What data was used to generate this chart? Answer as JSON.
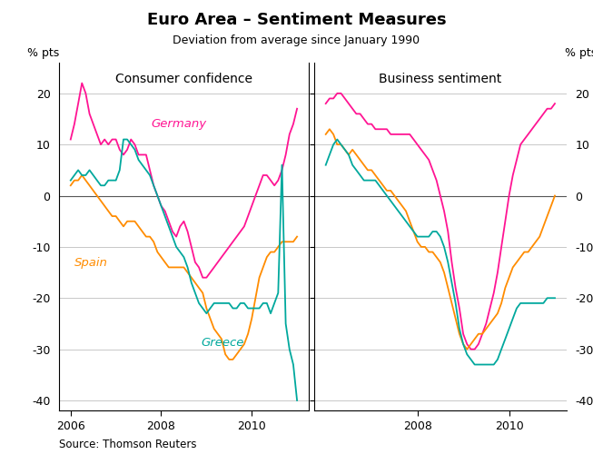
{
  "title": "Euro Area – Sentiment Measures",
  "subtitle": "Deviation from average since January 1990",
  "left_panel_title": "Consumer confidence",
  "right_panel_title": "Business sentiment",
  "ylabel": "% pts",
  "source": "Source: Thomson Reuters",
  "ylim": [
    -42,
    26
  ],
  "yticks": [
    -40,
    -30,
    -20,
    -10,
    0,
    10,
    20
  ],
  "germany_color": "#FF1493",
  "spain_color": "#FF8C00",
  "greece_color": "#00A89D",
  "consumer_dates": [
    2006.0,
    2006.083,
    2006.167,
    2006.25,
    2006.333,
    2006.417,
    2006.5,
    2006.583,
    2006.667,
    2006.75,
    2006.833,
    2006.917,
    2007.0,
    2007.083,
    2007.167,
    2007.25,
    2007.333,
    2007.417,
    2007.5,
    2007.583,
    2007.667,
    2007.75,
    2007.833,
    2007.917,
    2008.0,
    2008.083,
    2008.167,
    2008.25,
    2008.333,
    2008.417,
    2008.5,
    2008.583,
    2008.667,
    2008.75,
    2008.833,
    2008.917,
    2009.0,
    2009.083,
    2009.167,
    2009.25,
    2009.333,
    2009.417,
    2009.5,
    2009.583,
    2009.667,
    2009.75,
    2009.833,
    2009.917,
    2010.0,
    2010.083,
    2010.167,
    2010.25,
    2010.333,
    2010.417,
    2010.5,
    2010.583,
    2010.667,
    2010.75,
    2010.833,
    2010.917,
    2011.0
  ],
  "consumer_germany": [
    11,
    14,
    18,
    22,
    20,
    16,
    14,
    12,
    10,
    11,
    10,
    11,
    11,
    9,
    8,
    9,
    11,
    10,
    8,
    8,
    8,
    5,
    2,
    0,
    -2,
    -3,
    -5,
    -7,
    -8,
    -6,
    -5,
    -7,
    -10,
    -13,
    -14,
    -16,
    -16,
    -15,
    -14,
    -13,
    -12,
    -11,
    -10,
    -9,
    -8,
    -7,
    -6,
    -4,
    -2,
    0,
    2,
    4,
    4,
    3,
    2,
    3,
    5,
    8,
    12,
    14,
    17
  ],
  "consumer_spain": [
    2,
    3,
    3,
    4,
    3,
    2,
    1,
    0,
    -1,
    -2,
    -3,
    -4,
    -4,
    -5,
    -6,
    -5,
    -5,
    -5,
    -6,
    -7,
    -8,
    -8,
    -9,
    -11,
    -12,
    -13,
    -14,
    -14,
    -14,
    -14,
    -14,
    -15,
    -16,
    -17,
    -18,
    -19,
    -22,
    -24,
    -26,
    -27,
    -28,
    -31,
    -32,
    -32,
    -31,
    -30,
    -29,
    -27,
    -24,
    -20,
    -16,
    -14,
    -12,
    -11,
    -11,
    -10,
    -9,
    -9,
    -9,
    -9,
    -8
  ],
  "consumer_greece": [
    3,
    4,
    5,
    4,
    4,
    5,
    4,
    3,
    2,
    2,
    3,
    3,
    3,
    5,
    11,
    11,
    10,
    9,
    7,
    6,
    5,
    4,
    2,
    0,
    -2,
    -4,
    -6,
    -8,
    -10,
    -11,
    -12,
    -14,
    -17,
    -19,
    -21,
    -22,
    -23,
    -22,
    -21,
    -21,
    -21,
    -21,
    -21,
    -22,
    -22,
    -21,
    -21,
    -22,
    -22,
    -22,
    -22,
    -21,
    -21,
    -23,
    -21,
    -19,
    6,
    -25,
    -30,
    -33,
    -40
  ],
  "business_dates": [
    2006.0,
    2006.083,
    2006.167,
    2006.25,
    2006.333,
    2006.417,
    2006.5,
    2006.583,
    2006.667,
    2006.75,
    2006.833,
    2006.917,
    2007.0,
    2007.083,
    2007.167,
    2007.25,
    2007.333,
    2007.417,
    2007.5,
    2007.583,
    2007.667,
    2007.75,
    2007.833,
    2007.917,
    2008.0,
    2008.083,
    2008.167,
    2008.25,
    2008.333,
    2008.417,
    2008.5,
    2008.583,
    2008.667,
    2008.75,
    2008.833,
    2008.917,
    2009.0,
    2009.083,
    2009.167,
    2009.25,
    2009.333,
    2009.417,
    2009.5,
    2009.583,
    2009.667,
    2009.75,
    2009.833,
    2009.917,
    2010.0,
    2010.083,
    2010.167,
    2010.25,
    2010.333,
    2010.417,
    2010.5,
    2010.583,
    2010.667,
    2010.75,
    2010.833,
    2010.917,
    2011.0
  ],
  "business_germany": [
    18,
    19,
    19,
    20,
    20,
    19,
    18,
    17,
    16,
    16,
    15,
    14,
    14,
    13,
    13,
    13,
    13,
    12,
    12,
    12,
    12,
    12,
    12,
    11,
    10,
    9,
    8,
    7,
    5,
    3,
    0,
    -3,
    -7,
    -13,
    -18,
    -22,
    -27,
    -29,
    -30,
    -30,
    -29,
    -27,
    -25,
    -22,
    -19,
    -15,
    -10,
    -5,
    0,
    4,
    7,
    10,
    11,
    12,
    13,
    14,
    15,
    16,
    17,
    17,
    18
  ],
  "business_spain": [
    12,
    13,
    12,
    10,
    10,
    9,
    8,
    9,
    8,
    7,
    6,
    5,
    5,
    4,
    3,
    2,
    1,
    1,
    0,
    -1,
    -2,
    -3,
    -5,
    -7,
    -9,
    -10,
    -10,
    -11,
    -11,
    -12,
    -13,
    -15,
    -18,
    -21,
    -24,
    -27,
    -29,
    -30,
    -29,
    -28,
    -27,
    -27,
    -26,
    -25,
    -24,
    -23,
    -21,
    -18,
    -16,
    -14,
    -13,
    -12,
    -11,
    -11,
    -10,
    -9,
    -8,
    -6,
    -4,
    -2,
    0
  ],
  "business_greece": [
    6,
    8,
    10,
    11,
    10,
    9,
    8,
    6,
    5,
    4,
    3,
    3,
    3,
    3,
    2,
    1,
    0,
    -1,
    -2,
    -3,
    -4,
    -5,
    -6,
    -7,
    -8,
    -8,
    -8,
    -8,
    -7,
    -7,
    -8,
    -10,
    -13,
    -17,
    -21,
    -26,
    -29,
    -31,
    -32,
    -33,
    -33,
    -33,
    -33,
    -33,
    -33,
    -32,
    -30,
    -28,
    -26,
    -24,
    -22,
    -21,
    -21,
    -21,
    -21,
    -21,
    -21,
    -21,
    -20,
    -20,
    -20
  ],
  "left_xlim": [
    2005.75,
    2011.25
  ],
  "right_xlim": [
    2005.75,
    2011.25
  ],
  "left_xticks": [
    2006,
    2008,
    2010
  ],
  "right_xticks": [
    2008,
    2010
  ],
  "left_xticklabels": [
    "2006",
    "2008",
    "2010"
  ],
  "right_xticklabels": [
    "2008",
    "2010"
  ]
}
